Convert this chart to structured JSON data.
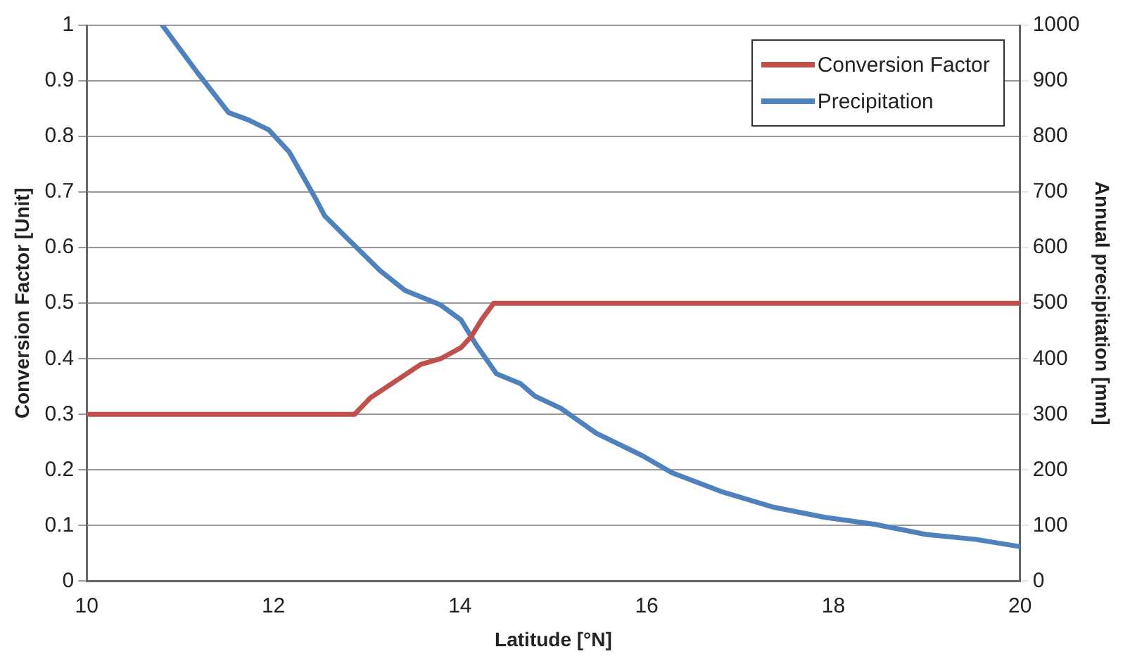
{
  "chart_data": {
    "type": "line",
    "xlabel": "Latitude [°N]",
    "ylabel": "Conversion Factor [Unit]",
    "y2label": "Annual precipitation [mm]",
    "xlim": [
      10,
      20
    ],
    "xticks": [
      10,
      12,
      14,
      16,
      18,
      20
    ],
    "ylim": [
      0,
      1
    ],
    "yticks": [
      0,
      0.1,
      0.2,
      0.3,
      0.4,
      0.5,
      0.6,
      0.7,
      0.8,
      0.9,
      1
    ],
    "y2lim": [
      0,
      1000
    ],
    "y2ticks": [
      0,
      100,
      200,
      300,
      400,
      500,
      600,
      700,
      800,
      900,
      1000
    ],
    "grid": "y",
    "legend": "top right",
    "marker": "none",
    "line_style": "solid",
    "series": [
      {
        "name": "Conversion Factor",
        "color": "#c0504d",
        "x": [
          10,
          12.87,
          13.04,
          13.31,
          13.58,
          13.79,
          14.01,
          14.12,
          14.23,
          14.36,
          14.42,
          20
        ],
        "values": [
          0.3,
          0.3,
          0.33,
          0.36,
          0.39,
          0.4,
          0.42,
          0.44,
          0.47,
          0.5,
          0.5,
          0.5
        ]
      },
      {
        "name": "Precipitation",
        "color": "#4f81bd",
        "axis": "y2",
        "x": [
          10.81,
          11.19,
          11.52,
          11.73,
          11.95,
          12.17,
          12.44,
          12.55,
          12.82,
          13.14,
          13.41,
          13.79,
          14.01,
          14.17,
          14.39,
          14.65,
          14.8,
          15.08,
          15.46,
          15.95,
          16.27,
          16.82,
          17.36,
          17.9,
          18.45,
          18.99,
          19.53,
          20
        ],
        "values": [
          1000,
          914,
          843,
          830,
          812,
          772,
          692,
          657,
          612,
          559,
          523,
          497,
          470,
          426,
          373,
          355,
          333,
          311,
          266,
          226,
          195,
          160,
          133,
          115,
          102,
          84,
          75,
          62
        ]
      }
    ]
  }
}
